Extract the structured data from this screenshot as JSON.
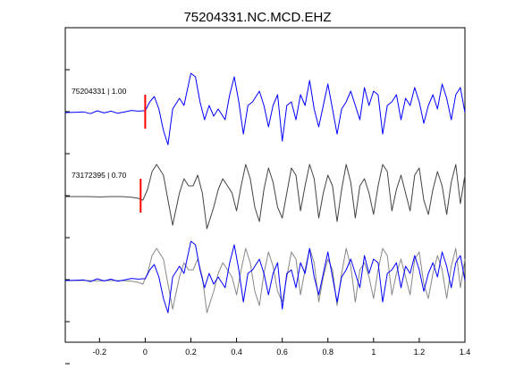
{
  "chart_data": {
    "type": "line",
    "title": "75204331.NC.MCD.EHZ",
    "xlabel": "",
    "ylabel": "",
    "xlim": [
      -0.35,
      1.4
    ],
    "x_ticks": [
      -0.2,
      0,
      0.2,
      0.4,
      0.6,
      0.8,
      1.0,
      1.2,
      1.4
    ],
    "x_tick_labels": [
      "-0.2",
      "0",
      "0.2",
      "0.4",
      "0.6",
      "0.8",
      "1",
      "1.2",
      "1.4"
    ],
    "y_ticks_count": 8,
    "grid": false,
    "colors": {
      "primary": "#0000ff",
      "secondary": "#444444",
      "overlay_secondary": "#888888",
      "pick": "#ff0000"
    },
    "traces": [
      {
        "label": "75204331 | 1.00",
        "color": "#0000ff",
        "pick_time": 0.0,
        "t": [
          -0.35,
          -0.3,
          -0.27,
          -0.24,
          -0.21,
          -0.18,
          -0.15,
          -0.12,
          -0.09,
          -0.06,
          -0.03,
          -0.01,
          0.0,
          0.02,
          0.04,
          0.06,
          0.08,
          0.1,
          0.12,
          0.15,
          0.17,
          0.2,
          0.22,
          0.24,
          0.26,
          0.28,
          0.3,
          0.32,
          0.35,
          0.37,
          0.39,
          0.41,
          0.43,
          0.45,
          0.47,
          0.5,
          0.52,
          0.54,
          0.56,
          0.58,
          0.6,
          0.62,
          0.64,
          0.66,
          0.68,
          0.7,
          0.72,
          0.74,
          0.76,
          0.78,
          0.8,
          0.82,
          0.84,
          0.86,
          0.88,
          0.9,
          0.92,
          0.94,
          0.96,
          0.98,
          1.0,
          1.02,
          1.04,
          1.06,
          1.08,
          1.1,
          1.12,
          1.14,
          1.16,
          1.18,
          1.2,
          1.22,
          1.24,
          1.26,
          1.28,
          1.3,
          1.32,
          1.34,
          1.36,
          1.38,
          1.4
        ],
        "v": [
          0.0,
          0.01,
          0.02,
          -0.03,
          0.05,
          -0.01,
          0.04,
          -0.02,
          0.02,
          0.06,
          0.04,
          0.05,
          0.05,
          0.3,
          0.45,
          0.1,
          -0.5,
          -0.9,
          0.1,
          0.4,
          0.2,
          1.1,
          1.0,
          0.3,
          -0.2,
          0.2,
          -0.1,
          0.1,
          -0.2,
          0.5,
          1.0,
          0.3,
          -0.6,
          0.2,
          0.3,
          0.6,
          0.2,
          -0.4,
          0.2,
          0.5,
          -0.8,
          0.2,
          0.3,
          -0.2,
          0.5,
          0.2,
          0.9,
          0.1,
          -0.4,
          0.2,
          0.8,
          0.1,
          -0.6,
          0.1,
          0.3,
          0.6,
          0.2,
          -0.2,
          0.7,
          0.2,
          0.6,
          0.5,
          -0.6,
          0.2,
          0.3,
          0.5,
          -0.2,
          0.4,
          0.2,
          0.7,
          0.3,
          -0.3,
          0.2,
          0.5,
          0.1,
          0.8,
          0.4,
          -0.2,
          0.5,
          0.7,
          0.0
        ]
      },
      {
        "label": "73172395 | 0.70",
        "color": "#444444",
        "pick_time": -0.02,
        "t": [
          -0.35,
          -0.3,
          -0.25,
          -0.2,
          -0.15,
          -0.1,
          -0.06,
          -0.03,
          -0.01,
          0.01,
          0.03,
          0.05,
          0.08,
          0.1,
          0.12,
          0.15,
          0.17,
          0.19,
          0.21,
          0.23,
          0.25,
          0.27,
          0.3,
          0.32,
          0.34,
          0.36,
          0.38,
          0.4,
          0.42,
          0.44,
          0.46,
          0.48,
          0.5,
          0.52,
          0.54,
          0.56,
          0.58,
          0.6,
          0.62,
          0.64,
          0.66,
          0.68,
          0.7,
          0.72,
          0.74,
          0.76,
          0.78,
          0.8,
          0.82,
          0.84,
          0.86,
          0.88,
          0.9,
          0.92,
          0.94,
          0.96,
          0.98,
          1.0,
          1.02,
          1.04,
          1.06,
          1.08,
          1.1,
          1.12,
          1.14,
          1.16,
          1.18,
          1.2,
          1.22,
          1.24,
          1.26,
          1.28,
          1.3,
          1.32,
          1.34,
          1.36,
          1.38,
          1.4
        ],
        "v": [
          0.0,
          0.0,
          0.0,
          -0.01,
          0.0,
          0.0,
          -0.02,
          -0.05,
          -0.1,
          0.2,
          0.7,
          0.9,
          0.6,
          -0.1,
          -0.8,
          0.1,
          0.5,
          0.3,
          0.3,
          0.6,
          0.1,
          -0.9,
          -0.3,
          0.2,
          0.5,
          0.3,
          0.1,
          -0.4,
          0.3,
          0.9,
          0.5,
          -0.3,
          -0.7,
          0.2,
          0.8,
          0.4,
          -0.3,
          -0.6,
          0.1,
          0.8,
          0.6,
          -0.4,
          0.3,
          0.9,
          0.5,
          -0.6,
          0.1,
          0.6,
          0.3,
          -0.7,
          0.2,
          0.9,
          0.4,
          -0.6,
          0.3,
          0.5,
          0.1,
          -0.5,
          0.3,
          0.9,
          0.7,
          -0.4,
          0.2,
          0.6,
          0.1,
          -0.4,
          0.6,
          0.8,
          -0.1,
          -0.5,
          0.2,
          0.7,
          0.3,
          -0.5,
          0.4,
          0.9,
          -0.2,
          0.6
        ]
      }
    ],
    "overlay": {
      "traces": [
        0,
        1
      ]
    }
  }
}
